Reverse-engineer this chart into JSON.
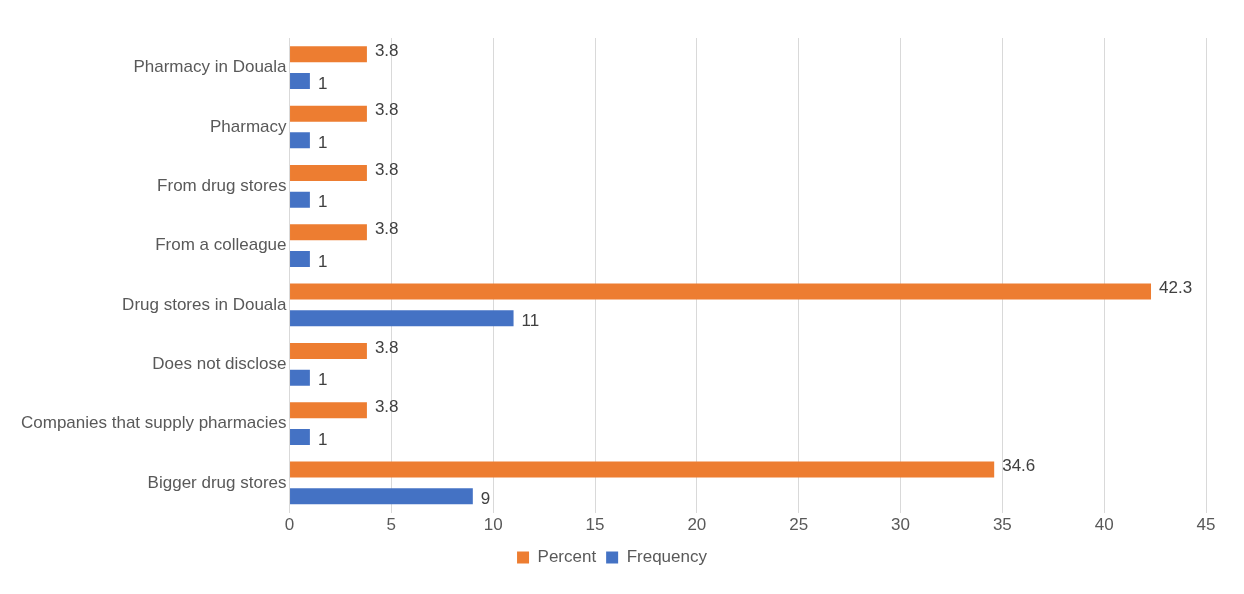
{
  "chart_data": {
    "type": "bar",
    "orientation": "horizontal",
    "categories": [
      "Pharmacy in Douala",
      "Pharmacy",
      "From drug stores",
      "From a colleague",
      "Drug stores in Douala",
      "Does not disclose",
      "Companies that supply pharmacies",
      "Bigger drug stores"
    ],
    "series": [
      {
        "name": "Percent",
        "color": "#ed7d31",
        "values": [
          3.8,
          3.8,
          3.8,
          3.8,
          42.3,
          3.8,
          3.8,
          34.6
        ]
      },
      {
        "name": "Frequency",
        "color": "#4472c4",
        "values": [
          1,
          1,
          1,
          1,
          11,
          1,
          1,
          9
        ]
      }
    ],
    "xlim": [
      0,
      45
    ],
    "xticks": [
      0,
      5,
      10,
      15,
      20,
      25,
      30,
      35,
      40,
      45
    ],
    "grid": "x",
    "legend": "bottom",
    "data_labels": true
  }
}
